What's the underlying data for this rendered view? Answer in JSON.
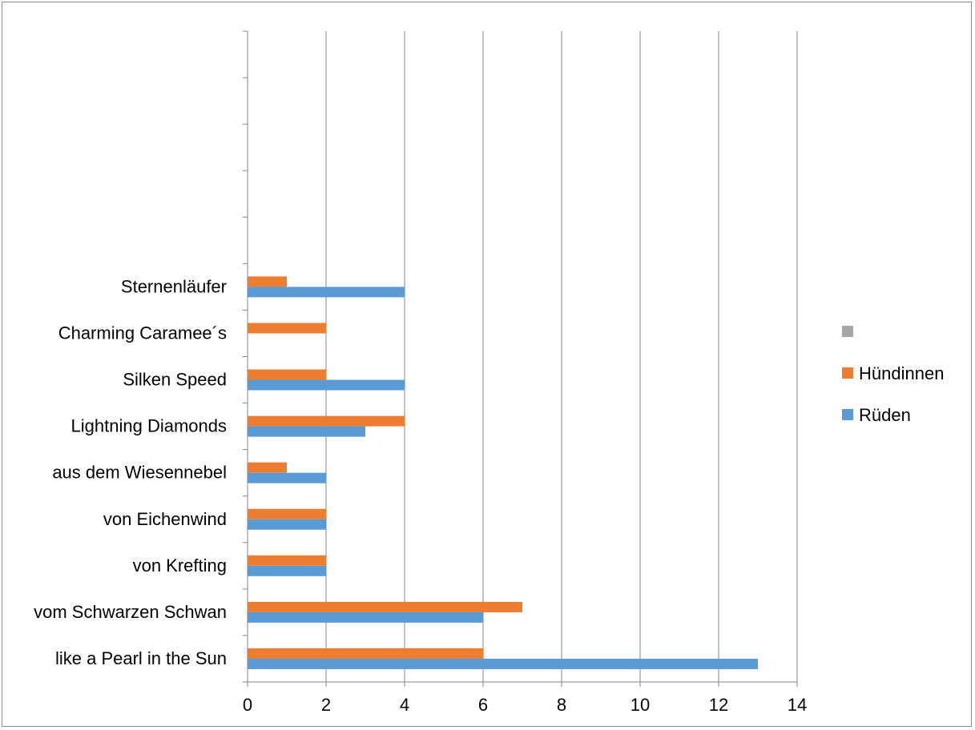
{
  "chart_data": {
    "type": "bar",
    "orientation": "horizontal",
    "categories": [
      "like a Pearl in the Sun",
      "vom Schwarzen Schwan",
      "von Krefting",
      "von Eichenwind",
      "aus dem Wiesennebel",
      "Lightning Diamonds",
      "Silken Speed",
      "Charming Caramee´s",
      "Sternenläufer",
      "",
      "",
      "",
      "",
      ""
    ],
    "series": [
      {
        "name": "Rüden",
        "color": "#5b9bd5",
        "values": [
          13,
          6,
          2,
          2,
          2,
          3,
          4,
          0,
          4,
          null,
          null,
          null,
          null,
          null
        ]
      },
      {
        "name": "Hündinnen",
        "color": "#ed7d31",
        "values": [
          6,
          7,
          2,
          2,
          1,
          4,
          2,
          2,
          1,
          null,
          null,
          null,
          null,
          null
        ]
      },
      {
        "name": "",
        "color": "#a5a5a5",
        "values": [
          null,
          null,
          null,
          null,
          null,
          null,
          null,
          null,
          null,
          null,
          null,
          null,
          null,
          null
        ]
      }
    ],
    "xlim": [
      0,
      14
    ],
    "xticks": [
      0,
      2,
      4,
      6,
      8,
      10,
      12,
      14
    ],
    "grid": "vertical",
    "legend_position": "right",
    "title": "",
    "xlabel": "",
    "ylabel": ""
  }
}
